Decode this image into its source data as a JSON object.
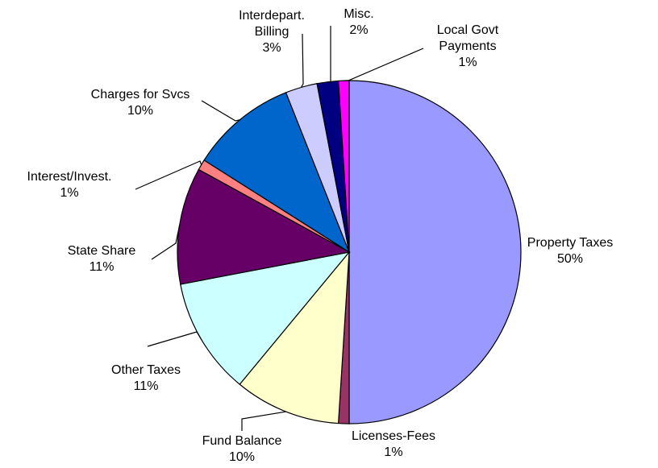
{
  "chart_data": {
    "type": "pie",
    "categories": [
      "Property Taxes",
      "Licenses-Fees",
      "Fund Balance",
      "Other Taxes",
      "State Share",
      "Interest/Invest.",
      "Charges for Svcs",
      "Interdepart. Billing",
      "Misc.",
      "Local Govt Payments"
    ],
    "values": [
      50,
      1,
      10,
      11,
      11,
      1,
      10,
      3,
      2,
      1
    ],
    "value_labels": [
      "50%",
      "1%",
      "10%",
      "11%",
      "11%",
      "1%",
      "10%",
      "3%",
      "2%",
      "1%"
    ],
    "colors": [
      "#9999ff",
      "#993366",
      "#ffffcc",
      "#ccffff",
      "#660066",
      "#ff8080",
      "#0066cc",
      "#ccccff",
      "#000080",
      "#ff00ff"
    ]
  }
}
